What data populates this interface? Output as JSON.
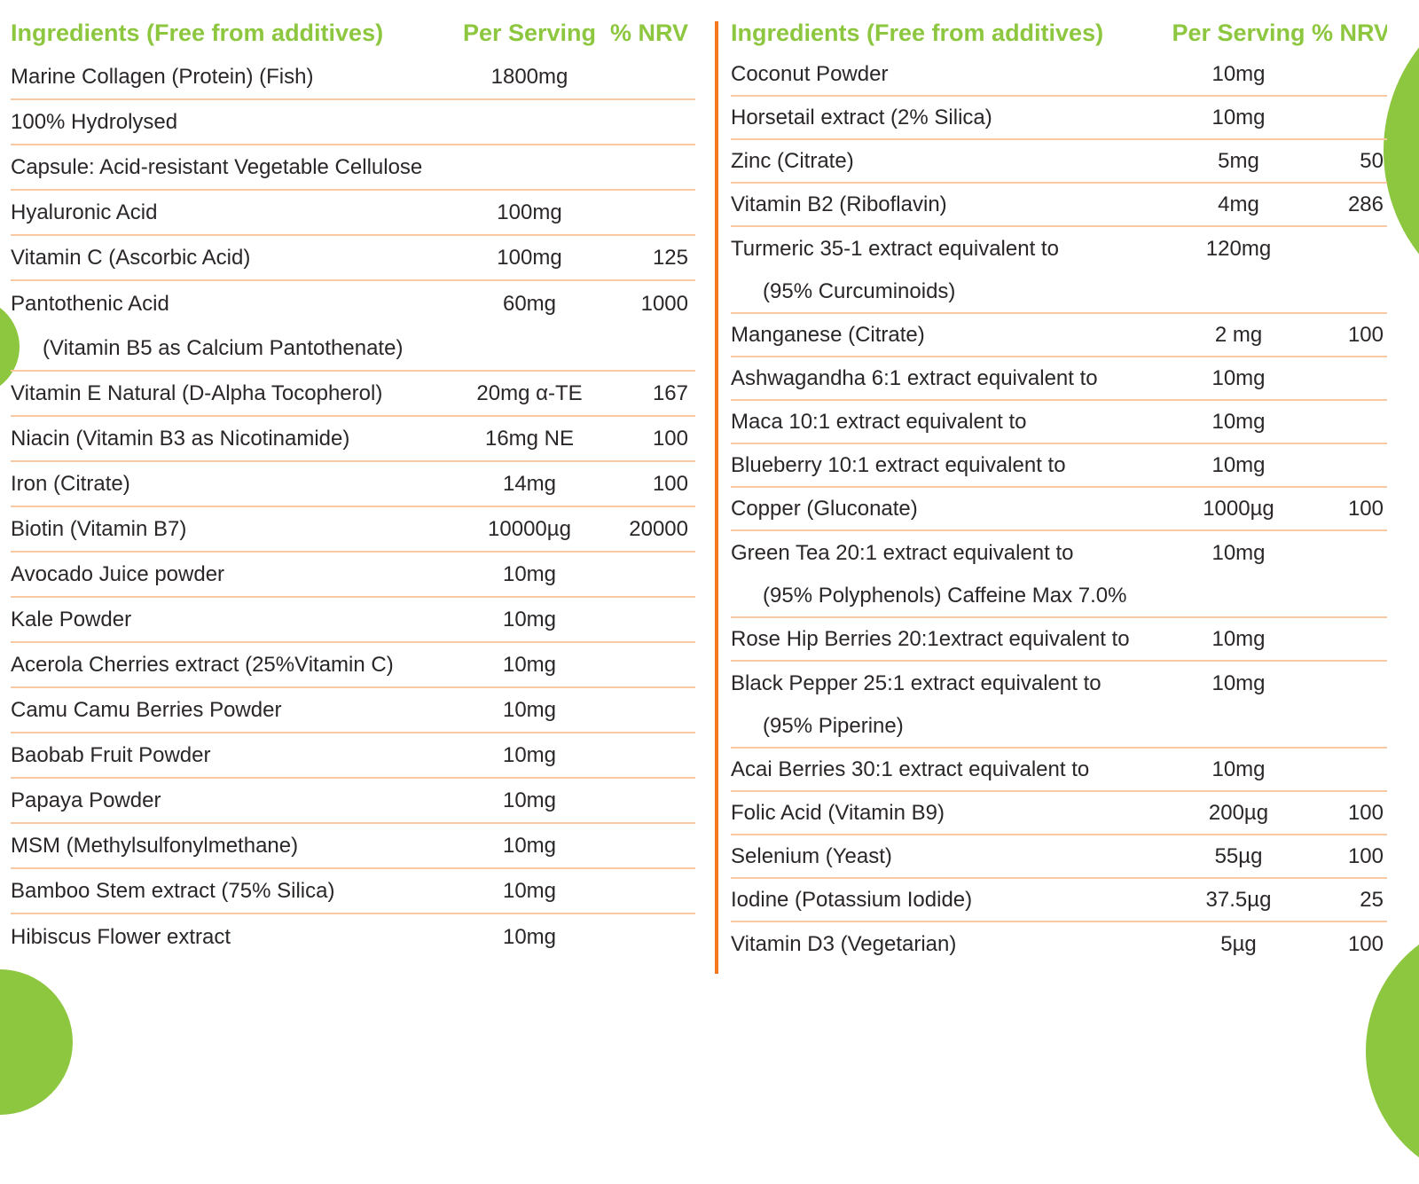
{
  "colors": {
    "header_green": "#8dc63f",
    "blob_green": "#8dc63f",
    "divider_orange": "#f4791f",
    "row_separator_peach": "#f8c9a2",
    "text_dark": "#2b2728"
  },
  "header": {
    "ingredients": "Ingredients (Free from additives)",
    "per_serving": "Per Serving",
    "nrv": "% NRV"
  },
  "left_table": {
    "rows": [
      {
        "name": "Marine Collagen (Protein) (Fish)",
        "serving": "1800mg",
        "nrv": "",
        "indent": false,
        "sep": true
      },
      {
        "name": "100% Hydrolysed",
        "serving": "",
        "nrv": "",
        "indent": false,
        "sep": true
      },
      {
        "name": "Capsule: Acid-resistant Vegetable Cellulose",
        "serving": "",
        "nrv": "",
        "indent": false,
        "sep": true
      },
      {
        "name": "Hyaluronic Acid",
        "serving": "100mg",
        "nrv": "",
        "indent": false,
        "sep": true
      },
      {
        "name": "Vitamin C (Ascorbic Acid)",
        "serving": "100mg",
        "nrv": "125",
        "indent": false,
        "sep": true
      },
      {
        "name": "Pantothenic Acid",
        "serving": "60mg",
        "nrv": "1000",
        "indent": false,
        "sep": false
      },
      {
        "name": "(Vitamin B5 as Calcium Pantothenate)",
        "serving": "",
        "nrv": "",
        "indent": true,
        "sep": true
      },
      {
        "name": "Vitamin E Natural (D-Alpha Tocopherol)",
        "serving": "20mg α-TE",
        "nrv": "167",
        "indent": false,
        "sep": true
      },
      {
        "name": "Niacin (Vitamin B3 as Nicotinamide)",
        "serving": "16mg NE",
        "nrv": "100",
        "indent": false,
        "sep": true
      },
      {
        "name": "Iron (Citrate)",
        "serving": "14mg",
        "nrv": "100",
        "indent": false,
        "sep": true
      },
      {
        "name": "Biotin (Vitamin B7)",
        "serving": "10000µg",
        "nrv": "20000",
        "indent": false,
        "sep": true
      },
      {
        "name": "Avocado Juice powder",
        "serving": "10mg",
        "nrv": "",
        "indent": false,
        "sep": true
      },
      {
        "name": "Kale Powder",
        "serving": "10mg",
        "nrv": "",
        "indent": false,
        "sep": true
      },
      {
        "name": "Acerola Cherries extract (25%Vitamin C)",
        "serving": "10mg",
        "nrv": "",
        "indent": false,
        "sep": true
      },
      {
        "name": "Camu Camu Berries Powder",
        "serving": "10mg",
        "nrv": "",
        "indent": false,
        "sep": true
      },
      {
        "name": "Baobab Fruit Powder",
        "serving": "10mg",
        "nrv": "",
        "indent": false,
        "sep": true
      },
      {
        "name": "Papaya Powder",
        "serving": "10mg",
        "nrv": "",
        "indent": false,
        "sep": true
      },
      {
        "name": "MSM (Methylsulfonylmethane)",
        "serving": "10mg",
        "nrv": "",
        "indent": false,
        "sep": true
      },
      {
        "name": "Bamboo Stem extract (75% Silica)",
        "serving": "10mg",
        "nrv": "",
        "indent": false,
        "sep": true
      },
      {
        "name": "Hibiscus Flower extract",
        "serving": "10mg",
        "nrv": "",
        "indent": false,
        "sep": false
      }
    ]
  },
  "right_table": {
    "rows": [
      {
        "name": "Coconut Powder",
        "serving": "10mg",
        "nrv": "",
        "indent": false,
        "sep": true
      },
      {
        "name": "Horsetail extract (2% Silica)",
        "serving": "10mg",
        "nrv": "",
        "indent": false,
        "sep": true
      },
      {
        "name": "Zinc (Citrate)",
        "serving": "5mg",
        "nrv": "50",
        "indent": false,
        "sep": true
      },
      {
        "name": "Vitamin B2 (Riboflavin)",
        "serving": "4mg",
        "nrv": "286",
        "indent": false,
        "sep": true
      },
      {
        "name": "Turmeric 35-1 extract equivalent to",
        "serving": "120mg",
        "nrv": "",
        "indent": false,
        "sep": false
      },
      {
        "name": "(95% Curcuminoids)",
        "serving": "",
        "nrv": "",
        "indent": true,
        "sep": true
      },
      {
        "name": "Manganese (Citrate)",
        "serving": "2 mg",
        "nrv": "100",
        "indent": false,
        "sep": true
      },
      {
        "name": "Ashwagandha 6:1 extract equivalent to",
        "serving": "10mg",
        "nrv": "",
        "indent": false,
        "sep": true
      },
      {
        "name": "Maca 10:1 extract equivalent to",
        "serving": "10mg",
        "nrv": "",
        "indent": false,
        "sep": true
      },
      {
        "name": "Blueberry 10:1 extract equivalent to",
        "serving": "10mg",
        "nrv": "",
        "indent": false,
        "sep": true
      },
      {
        "name": "Copper (Gluconate)",
        "serving": "1000µg",
        "nrv": "100",
        "indent": false,
        "sep": true
      },
      {
        "name": "Green Tea 20:1 extract equivalent to",
        "serving": "10mg",
        "nrv": "",
        "indent": false,
        "sep": false
      },
      {
        "name": "(95% Polyphenols) Caffeine Max 7.0%",
        "serving": "",
        "nrv": "",
        "indent": true,
        "sep": true
      },
      {
        "name": "Rose Hip Berries 20:1extract equivalent to",
        "serving": "10mg",
        "nrv": "",
        "indent": false,
        "sep": true
      },
      {
        "name": "Black Pepper 25:1 extract equivalent to",
        "serving": "10mg",
        "nrv": "",
        "indent": false,
        "sep": false
      },
      {
        "name": "(95% Piperine)",
        "serving": "",
        "nrv": "",
        "indent": true,
        "sep": true
      },
      {
        "name": "Acai Berries 30:1 extract equivalent to",
        "serving": "10mg",
        "nrv": "",
        "indent": false,
        "sep": true
      },
      {
        "name": "Folic Acid (Vitamin B9)",
        "serving": "200µg",
        "nrv": "100",
        "indent": false,
        "sep": true
      },
      {
        "name": "Selenium (Yeast)",
        "serving": "55µg",
        "nrv": "100",
        "indent": false,
        "sep": true
      },
      {
        "name": "Iodine (Potassium Iodide)",
        "serving": "37.5µg",
        "nrv": "25",
        "indent": false,
        "sep": true
      },
      {
        "name": "Vitamin D3 (Vegetarian)",
        "serving": "5µg",
        "nrv": "100",
        "indent": false,
        "sep": false
      }
    ]
  }
}
